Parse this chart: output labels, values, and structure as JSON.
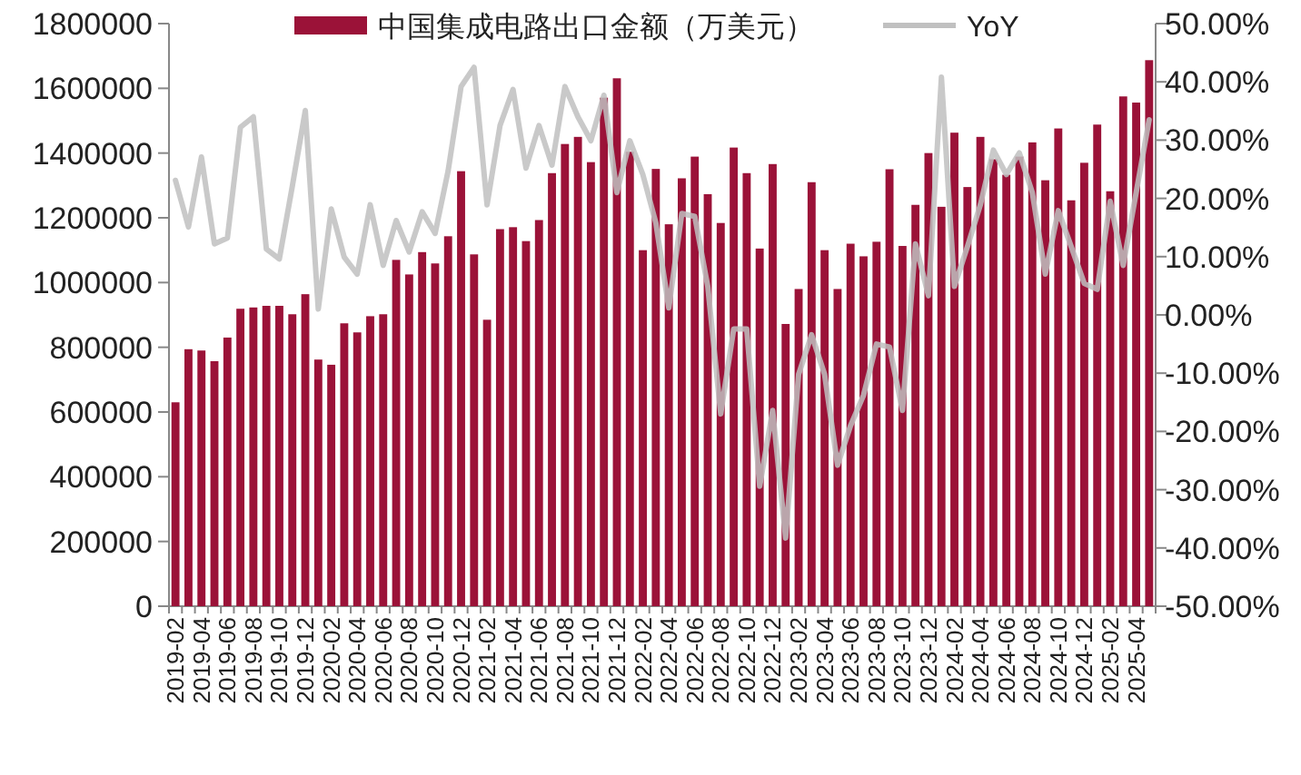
{
  "chart_data": {
    "type": "bar",
    "categories": [
      "2019-02",
      null,
      "2019-04",
      null,
      "2019-06",
      null,
      "2019-08",
      null,
      "2019-10",
      null,
      "2019-12",
      null,
      "2020-02",
      null,
      "2020-04",
      null,
      "2020-06",
      null,
      "2020-08",
      null,
      "2020-10",
      null,
      "2020-12",
      null,
      "2021-02",
      null,
      "2021-04",
      null,
      "2021-06",
      null,
      "2021-08",
      null,
      "2021-10",
      null,
      "2021-12",
      null,
      "2022-02",
      null,
      "2022-04",
      null,
      "2022-06",
      null,
      "2022-08",
      null,
      "2022-10",
      null,
      "2022-12",
      null,
      "2023-02",
      null,
      "2023-04",
      null,
      "2023-06",
      null,
      "2023-08",
      null,
      "2023-10",
      null,
      "2023-12",
      null,
      "2024-02",
      null,
      "2024-04",
      null,
      "2024-06",
      null,
      "2024-08",
      null,
      "2024-10",
      null,
      "2024-12",
      null,
      "2025-02",
      null,
      "2025-04",
      null
    ],
    "series": [
      {
        "name": "中国集成电路出口金额（万美元）",
        "color": "#9b1238",
        "values": [
          630000,
          794000,
          790000,
          757000,
          830000,
          919000,
          923000,
          928000,
          928000,
          902000,
          964000,
          762000,
          746000,
          874000,
          846000,
          896000,
          902000,
          1070000,
          1025000,
          1094000,
          1059000,
          1143000,
          1344000,
          1087000,
          885000,
          1165000,
          1171000,
          1128000,
          1193000,
          1338000,
          1428000,
          1450000,
          1372000,
          1571000,
          1631000,
          1404000,
          1100000,
          1351000,
          1180000,
          1322000,
          1389000,
          1273000,
          1184000,
          1417000,
          1338000,
          1105000,
          1366000,
          872000,
          980000,
          1310000,
          1100000,
          980000,
          1120000,
          1081000,
          1126000,
          1350000,
          1113000,
          1240000,
          1400000,
          1234000,
          1463000,
          1295000,
          1450000,
          1381000,
          1333000,
          1389000,
          1433000,
          1316000,
          1476000,
          1254000,
          1370000,
          1488000,
          1282000,
          1575000,
          1556000,
          1687000
        ]
      },
      {
        "name": "YoY",
        "type": "line",
        "axis": "y2",
        "color": "#c0c0c0",
        "values": [
          23.1,
          15.1,
          27.1,
          12.2,
          13.2,
          32.2,
          34.0,
          11.3,
          9.6,
          22.1,
          35.1,
          1.0,
          18.2,
          9.9,
          7.0,
          18.9,
          8.5,
          16.2,
          10.8,
          17.7,
          14.0,
          24.7,
          39.2,
          42.5,
          18.9,
          32.5,
          38.7,
          25.2,
          32.5,
          25.7,
          39.2,
          34.0,
          29.9,
          37.7,
          21.0,
          29.9,
          24.1,
          15.8,
          1.2,
          17.4,
          16.9,
          4.9,
          -17.0,
          -2.4,
          -2.4,
          -29.4,
          -16.4,
          -38.3,
          -10.2,
          -3.4,
          -10.2,
          -25.8,
          -19.0,
          -13.8,
          -5.0,
          -5.5,
          -16.4,
          12.2,
          3.3,
          40.8,
          4.9,
          11.7,
          18.9,
          28.3,
          24.1,
          27.8,
          21.0,
          7.0,
          17.9,
          11.7,
          5.4,
          4.4,
          19.5,
          8.5,
          21.0,
          33.5
        ]
      }
    ],
    "ylim": [
      0,
      1800000
    ],
    "yticks": [
      0,
      200000,
      400000,
      600000,
      800000,
      1000000,
      1200000,
      1400000,
      1600000,
      1800000
    ],
    "y2lim": [
      -50,
      50
    ],
    "y2ticks": [
      {
        "value": -50,
        "label": "-50.00%"
      },
      {
        "value": -40,
        "label": "-40.00%"
      },
      {
        "value": -30,
        "label": "-30.00%"
      },
      {
        "value": -20,
        "label": "-20.00%"
      },
      {
        "value": -10,
        "label": "-10.00%"
      },
      {
        "value": 0,
        "label": "0.00%"
      },
      {
        "value": 10,
        "label": "10.00%"
      },
      {
        "value": 20,
        "label": "20.00%"
      },
      {
        "value": 30,
        "label": "30.00%"
      },
      {
        "value": 40,
        "label": "40.00%"
      },
      {
        "value": 50,
        "label": "50.00%"
      }
    ],
    "legend": "top",
    "grid": false
  }
}
